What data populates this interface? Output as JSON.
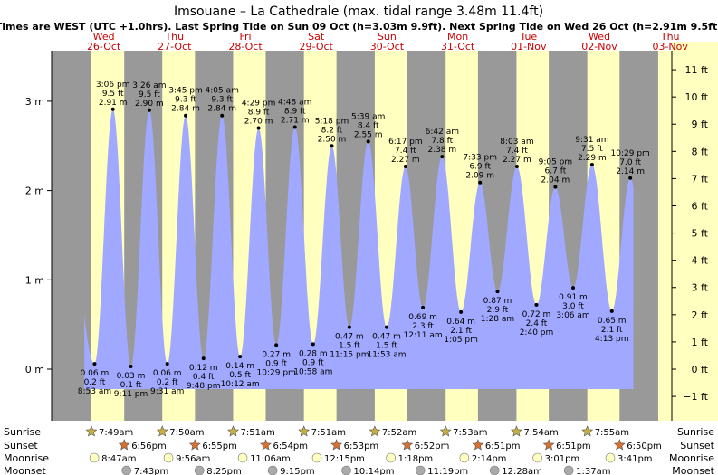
{
  "chart_data": {
    "type": "area",
    "title": "Imsouane – La Cathedrale (max. tidal range 3.48m 11.4ft)",
    "subtitle": "Times are WEST (UTC +1.0hrs). Last Spring Tide on Sun 09 Oct (h=3.03m 9.9ft). Next Spring Tide on Wed 26 Oct (h=2.91m 9.5ft)",
    "x_range": [
      "25-Oct 20:00",
      "03-Nov 23:59"
    ],
    "ylim_m": [
      -0.3,
      3.7
    ],
    "yticks_m": [
      "0 m",
      "1 m",
      "2 m",
      "3 m"
    ],
    "yticks_ft": [
      "−1 ft",
      "0 ft",
      "1 ft",
      "2 ft",
      "3 ft",
      "4 ft",
      "5 ft",
      "6 ft",
      "7 ft",
      "8 ft",
      "9 ft",
      "10 ft",
      "11 ft"
    ],
    "days": [
      {
        "name": "Wed",
        "date": "26-Oct"
      },
      {
        "name": "Thu",
        "date": "27-Oct"
      },
      {
        "name": "Fri",
        "date": "28-Oct"
      },
      {
        "name": "Sat",
        "date": "29-Oct"
      },
      {
        "name": "Sun",
        "date": "30-Oct"
      },
      {
        "name": "Mon",
        "date": "31-Oct"
      },
      {
        "name": "Tue",
        "date": "01-Nov"
      },
      {
        "name": "Wed",
        "date": "02-Nov"
      },
      {
        "name": "Thu",
        "date": "03-Nov"
      }
    ],
    "tides": [
      {
        "type": "low",
        "time": "8:53 am",
        "day": 0,
        "m": 0.06,
        "m_label": "0.06 m",
        "ft_label": "0.2 ft"
      },
      {
        "type": "high",
        "time": "3:06 pm",
        "day": 0,
        "m": 2.91,
        "m_label": "2.91 m",
        "ft_label": "9.5 ft"
      },
      {
        "type": "low",
        "time": "9:11 pm",
        "day": 0,
        "m": 0.03,
        "m_label": "0.03 m",
        "ft_label": "0.1 ft"
      },
      {
        "type": "high",
        "time": "3:26 am",
        "day": 1,
        "m": 2.9,
        "m_label": "2.90 m",
        "ft_label": "9.5 ft"
      },
      {
        "type": "low",
        "time": "9:31 am",
        "day": 1,
        "m": 0.06,
        "m_label": "0.06 m",
        "ft_label": "0.2 ft"
      },
      {
        "type": "high",
        "time": "3:45 pm",
        "day": 1,
        "m": 2.84,
        "m_label": "2.84 m",
        "ft_label": "9.3 ft"
      },
      {
        "type": "low",
        "time": "9:48 pm",
        "day": 1,
        "m": 0.12,
        "m_label": "0.12 m",
        "ft_label": "0.4 ft"
      },
      {
        "type": "high",
        "time": "4:05 am",
        "day": 2,
        "m": 2.84,
        "m_label": "2.84 m",
        "ft_label": "9.3 ft"
      },
      {
        "type": "low",
        "time": "10:12 am",
        "day": 2,
        "m": 0.14,
        "m_label": "0.14 m",
        "ft_label": "0.5 ft"
      },
      {
        "type": "high",
        "time": "4:29 pm",
        "day": 2,
        "m": 2.7,
        "m_label": "2.70 m",
        "ft_label": "8.9 ft"
      },
      {
        "type": "low",
        "time": "10:29 pm",
        "day": 2,
        "m": 0.27,
        "m_label": "0.27 m",
        "ft_label": "0.9 ft"
      },
      {
        "type": "high",
        "time": "4:48 am",
        "day": 3,
        "m": 2.71,
        "m_label": "2.71 m",
        "ft_label": "8.9 ft"
      },
      {
        "type": "low",
        "time": "10:58 am",
        "day": 3,
        "m": 0.28,
        "m_label": "0.28 m",
        "ft_label": "0.9 ft"
      },
      {
        "type": "high",
        "time": "5:18 pm",
        "day": 3,
        "m": 2.5,
        "m_label": "2.50 m",
        "ft_label": "8.2 ft"
      },
      {
        "type": "low",
        "time": "11:15 pm",
        "day": 3,
        "m": 0.47,
        "m_label": "0.47 m",
        "ft_label": "1.5 ft"
      },
      {
        "type": "high",
        "time": "5:39 am",
        "day": 4,
        "m": 2.55,
        "m_label": "2.55 m",
        "ft_label": "8.4 ft"
      },
      {
        "type": "low",
        "time": "11:53 am",
        "day": 4,
        "m": 0.47,
        "m_label": "0.47 m",
        "ft_label": "1.5 ft"
      },
      {
        "type": "high",
        "time": "6:17 pm",
        "day": 4,
        "m": 2.27,
        "m_label": "2.27 m",
        "ft_label": "7.4 ft"
      },
      {
        "type": "low",
        "time": "12:11 am",
        "day": 5,
        "m": 0.69,
        "m_label": "0.69 m",
        "ft_label": "2.3 ft"
      },
      {
        "type": "high",
        "time": "6:42 am",
        "day": 5,
        "m": 2.38,
        "m_label": "2.38 m",
        "ft_label": "7.8 ft"
      },
      {
        "type": "low",
        "time": "1:05 pm",
        "day": 5,
        "m": 0.64,
        "m_label": "0.64 m",
        "ft_label": "2.1 ft"
      },
      {
        "type": "high",
        "time": "7:33 pm",
        "day": 5,
        "m": 2.09,
        "m_label": "2.09 m",
        "ft_label": "6.9 ft"
      },
      {
        "type": "low",
        "time": "1:28 am",
        "day": 6,
        "m": 0.87,
        "m_label": "0.87 m",
        "ft_label": "2.9 ft"
      },
      {
        "type": "high",
        "time": "8:03 am",
        "day": 6,
        "m": 2.27,
        "m_label": "2.27 m",
        "ft_label": "7.4 ft"
      },
      {
        "type": "low",
        "time": "2:40 pm",
        "day": 6,
        "m": 0.72,
        "m_label": "0.72 m",
        "ft_label": "2.4 ft"
      },
      {
        "type": "high",
        "time": "9:05 pm",
        "day": 6,
        "m": 2.04,
        "m_label": "2.04 m",
        "ft_label": "6.7 ft"
      },
      {
        "type": "low",
        "time": "3:06 am",
        "day": 7,
        "m": 0.91,
        "m_label": "0.91 m",
        "ft_label": "3.0 ft"
      },
      {
        "type": "high",
        "time": "9:31 am",
        "day": 7,
        "m": 2.29,
        "m_label": "2.29 m",
        "ft_label": "7.5 ft"
      },
      {
        "type": "low",
        "time": "4:13 pm",
        "day": 7,
        "m": 0.65,
        "m_label": "0.65 m",
        "ft_label": "2.1 ft"
      },
      {
        "type": "high",
        "time": "10:29 pm",
        "day": 7,
        "m": 2.14,
        "m_label": "2.14 m",
        "ft_label": "7.0 ft"
      }
    ],
    "sunrise": [
      "7:49am",
      "7:50am",
      "7:51am",
      "7:51am",
      "7:52am",
      "7:53am",
      "7:54am",
      "7:55am"
    ],
    "sunset": [
      "6:56pm",
      "6:55pm",
      "6:54pm",
      "6:53pm",
      "6:52pm",
      "6:51pm",
      "6:51pm",
      "6:50pm"
    ],
    "moonrise": [
      "8:47am",
      "9:56am",
      "11:06am",
      "12:15pm",
      "1:18pm",
      "2:14pm",
      "3:01pm",
      "3:41pm"
    ],
    "moonset": [
      "7:43pm",
      "8:25pm",
      "9:15pm",
      "10:14pm",
      "11:19pm",
      "12:28am",
      "1:37am"
    ],
    "row_labels": {
      "sunrise": "Sunrise",
      "sunset": "Sunset",
      "moonrise": "Moonrise",
      "moonset": "Moonset"
    },
    "colors": {
      "tide_fill": "#a0a8ff",
      "night": "#999999",
      "day": "#ffffc0",
      "day_label": "#cc0000",
      "sun_icon": "#c8b040",
      "sunset_icon": "#d87030",
      "moonrise_icon": "#ffffc0",
      "moonset_icon": "#aaaaaa"
    }
  }
}
